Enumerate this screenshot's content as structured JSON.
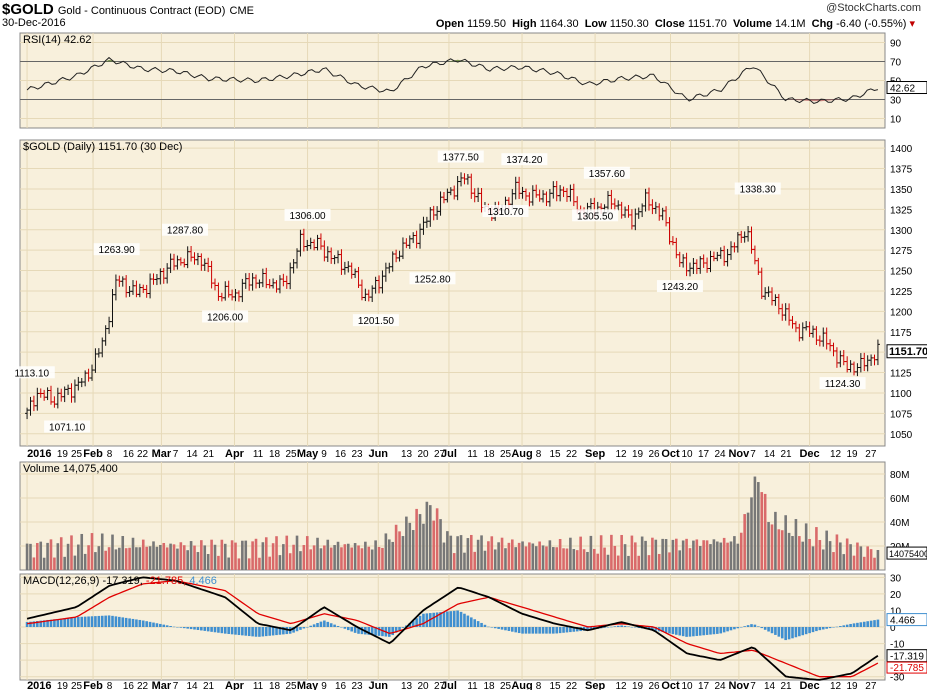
{
  "header": {
    "symbol": "$GOLD",
    "description": "Gold - Continuous Contract (EOD)",
    "exchange": "CME",
    "date": "30-Dec-2016",
    "credit": "@StockCharts.com",
    "open_label": "Open",
    "open": "1159.50",
    "high_label": "High",
    "high": "1164.30",
    "low_label": "Low",
    "low": "1150.30",
    "close_label": "Close",
    "close": "1151.70",
    "volume_label": "Volume",
    "volume": "14.1M",
    "chg_label": "Chg",
    "chg": "-6.40 (-0.55%)"
  },
  "colors": {
    "panel_bg": "#f8f0dc",
    "up": "#111111",
    "down": "#cc0000",
    "vol_up": "#777777",
    "vol_down": "#d96a6a",
    "rsi_fill": "#5a7a2a",
    "macd_line": "#000000",
    "signal_line": "#e00000",
    "hist": "#3f8fd0",
    "grid": "#e6d9b8"
  },
  "chart_data": [
    {
      "type": "line",
      "title": "RSI(14) 42.62",
      "label_prefix": "RSI(14)",
      "last": "42.62",
      "ylim": [
        0,
        100
      ],
      "yticks": [
        "90",
        "70",
        "50",
        "30",
        "10"
      ],
      "reference_lines": [
        70,
        30
      ],
      "x": [
        "2016-01-04",
        "2016-01-25",
        "2016-02-08",
        "2016-02-22",
        "2016-03-07",
        "2016-03-21",
        "2016-04-11",
        "2016-04-25",
        "2016-05-09",
        "2016-05-23",
        "2016-06-06",
        "2016-06-20",
        "2016-07-05",
        "2016-07-18",
        "2016-08-01",
        "2016-08-15",
        "2016-08-29",
        "2016-09-12",
        "2016-09-26",
        "2016-10-10",
        "2016-10-24",
        "2016-11-07",
        "2016-11-21",
        "2016-12-05",
        "2016-12-19",
        "2016-12-30"
      ],
      "values": [
        40,
        55,
        72,
        62,
        60,
        52,
        50,
        55,
        62,
        45,
        38,
        65,
        72,
        62,
        64,
        58,
        46,
        52,
        55,
        30,
        40,
        66,
        30,
        28,
        31,
        42.62
      ]
    },
    {
      "type": "candlestick",
      "title": "$GOLD (Daily) 1151.70 (30 Dec)",
      "last": "1151.70",
      "ylim": [
        1035,
        1410
      ],
      "yticks": [
        "1400",
        "1375",
        "1350",
        "1325",
        "1300",
        "1275",
        "1250",
        "1225",
        "1200",
        "1175",
        "1150",
        "1125",
        "1100",
        "1075",
        "1050"
      ],
      "x": [
        "2016-01-04",
        "2016-01-08",
        "2016-01-15",
        "2016-01-22",
        "2016-01-29",
        "2016-02-05",
        "2016-02-11",
        "2016-02-19",
        "2016-02-26",
        "2016-03-04",
        "2016-03-11",
        "2016-03-18",
        "2016-03-25",
        "2016-04-01",
        "2016-04-08",
        "2016-04-15",
        "2016-04-22",
        "2016-04-29",
        "2016-05-06",
        "2016-05-13",
        "2016-05-20",
        "2016-05-27",
        "2016-06-03",
        "2016-06-10",
        "2016-06-17",
        "2016-06-24",
        "2016-07-01",
        "2016-07-08",
        "2016-07-15",
        "2016-07-22",
        "2016-07-29",
        "2016-08-05",
        "2016-08-12",
        "2016-08-19",
        "2016-08-26",
        "2016-09-02",
        "2016-09-09",
        "2016-09-16",
        "2016-09-23",
        "2016-09-30",
        "2016-10-07",
        "2016-10-14",
        "2016-10-21",
        "2016-10-28",
        "2016-11-04",
        "2016-11-11",
        "2016-11-18",
        "2016-11-25",
        "2016-12-02",
        "2016-12-09",
        "2016-12-16",
        "2016-12-23",
        "2016-12-30"
      ],
      "values": [
        1075,
        1100,
        1092,
        1103,
        1118,
        1160,
        1240,
        1222,
        1235,
        1255,
        1265,
        1265,
        1222,
        1220,
        1240,
        1235,
        1232,
        1285,
        1282,
        1265,
        1252,
        1215,
        1245,
        1275,
        1292,
        1322,
        1345,
        1365,
        1328,
        1320,
        1350,
        1340,
        1342,
        1350,
        1322,
        1327,
        1335,
        1310,
        1338,
        1315,
        1258,
        1255,
        1265,
        1272,
        1302,
        1225,
        1208,
        1178,
        1175,
        1160,
        1132,
        1133,
        1151.7
      ],
      "annotations": [
        {
          "x": "2016-01-06",
          "label": "1113.10",
          "value": 1113.1
        },
        {
          "x": "2016-01-21",
          "label": "1071.10",
          "value": 1071.1
        },
        {
          "x": "2016-02-11",
          "label": "1263.90",
          "value": 1263.9
        },
        {
          "x": "2016-03-11",
          "label": "1287.80",
          "value": 1287.8
        },
        {
          "x": "2016-03-28",
          "label": "1206.00",
          "value": 1206.0
        },
        {
          "x": "2016-05-02",
          "label": "1306.00",
          "value": 1306.0
        },
        {
          "x": "2016-05-31",
          "label": "1201.50",
          "value": 1201.5
        },
        {
          "x": "2016-06-24",
          "label": "1252.80",
          "value": 1252.8
        },
        {
          "x": "2016-07-06",
          "label": "1377.50",
          "value": 1377.5
        },
        {
          "x": "2016-07-25",
          "label": "1310.70",
          "value": 1310.7
        },
        {
          "x": "2016-08-02",
          "label": "1374.20",
          "value": 1374.2
        },
        {
          "x": "2016-09-06",
          "label": "1357.60",
          "value": 1357.6
        },
        {
          "x": "2016-09-01",
          "label": "1305.50",
          "value": 1305.5
        },
        {
          "x": "2016-10-07",
          "label": "1243.20",
          "value": 1243.2
        },
        {
          "x": "2016-11-09",
          "label": "1338.30",
          "value": 1338.3
        },
        {
          "x": "2016-12-15",
          "label": "1124.30",
          "value": 1124.3
        }
      ]
    },
    {
      "type": "bar",
      "title": "Volume 14,075,400",
      "label_prefix": "Volume",
      "last": "14,075,400",
      "last_tag": "14075400",
      "ylim": [
        0,
        90
      ],
      "unit": "M",
      "yticks": [
        "80M",
        "60M",
        "40M",
        "20M"
      ],
      "x": [
        "2016-01-04",
        "2016-02-01",
        "2016-03-01",
        "2016-04-01",
        "2016-05-02",
        "2016-06-01",
        "2016-06-24",
        "2016-07-01",
        "2016-08-01",
        "2016-09-01",
        "2016-10-03",
        "2016-11-01",
        "2016-11-09",
        "2016-11-14",
        "2016-12-01",
        "2016-12-30"
      ],
      "values": [
        18,
        22,
        21,
        19,
        22,
        20,
        53,
        24,
        22,
        20,
        22,
        25,
        80,
        42,
        28,
        14.1
      ]
    },
    {
      "type": "line",
      "title": "MACD(12,26,9) -17.319, -21.785, 4.466",
      "label_prefix": "MACD(12,26,9)",
      "macd": "-17.319",
      "signal": "-21.785",
      "hist": "4.466",
      "ylim": [
        -32,
        32
      ],
      "yticks": [
        "30",
        "20",
        "10",
        "0",
        "-10",
        "-20",
        "-30"
      ],
      "x": [
        "2016-01-04",
        "2016-01-25",
        "2016-02-08",
        "2016-02-22",
        "2016-03-07",
        "2016-03-28",
        "2016-04-11",
        "2016-04-25",
        "2016-05-09",
        "2016-05-23",
        "2016-06-06",
        "2016-06-20",
        "2016-07-05",
        "2016-07-18",
        "2016-08-01",
        "2016-08-15",
        "2016-08-29",
        "2016-09-12",
        "2016-09-26",
        "2016-10-10",
        "2016-10-24",
        "2016-11-07",
        "2016-11-21",
        "2016-12-05",
        "2016-12-19",
        "2016-12-30"
      ],
      "series": [
        {
          "name": "MACD",
          "values": [
            5,
            12,
            25,
            30,
            28,
            18,
            2,
            -2,
            12,
            0,
            -10,
            10,
            24,
            18,
            8,
            2,
            -2,
            3,
            -2,
            -16,
            -20,
            -12,
            -30,
            -32,
            -28,
            -17.319
          ]
        },
        {
          "name": "Signal",
          "values": [
            2,
            6,
            18,
            26,
            28,
            22,
            8,
            2,
            8,
            4,
            -4,
            2,
            14,
            18,
            12,
            6,
            0,
            2,
            0,
            -10,
            -16,
            -14,
            -22,
            -30,
            -30,
            -21.785
          ]
        }
      ]
    }
  ],
  "x_axis": {
    "labels": [
      "2016",
      "19",
      "25",
      "Feb",
      "8",
      "16",
      "22",
      "Mar",
      "7",
      "14",
      "21",
      "Apr",
      "11",
      "18",
      "25",
      "May",
      "9",
      "16",
      "23",
      "Jun",
      "13",
      "20",
      "27",
      "Jul",
      "11",
      "18",
      "25",
      "Aug",
      "8",
      "15",
      "22",
      "Sep",
      "12",
      "19",
      "26",
      "Oct",
      "10",
      "17",
      "24",
      "Nov",
      "7",
      "14",
      "21",
      "Dec",
      "12",
      "19",
      "27"
    ],
    "positions": [
      "2016-01-04",
      "2016-01-19",
      "2016-01-25",
      "2016-02-01",
      "2016-02-08",
      "2016-02-16",
      "2016-02-22",
      "2016-03-01",
      "2016-03-07",
      "2016-03-14",
      "2016-03-21",
      "2016-04-01",
      "2016-04-11",
      "2016-04-18",
      "2016-04-25",
      "2016-05-02",
      "2016-05-09",
      "2016-05-16",
      "2016-05-23",
      "2016-06-01",
      "2016-06-13",
      "2016-06-20",
      "2016-06-27",
      "2016-07-01",
      "2016-07-11",
      "2016-07-18",
      "2016-07-25",
      "2016-08-01",
      "2016-08-08",
      "2016-08-15",
      "2016-08-22",
      "2016-09-01",
      "2016-09-12",
      "2016-09-19",
      "2016-09-26",
      "2016-10-03",
      "2016-10-10",
      "2016-10-17",
      "2016-10-24",
      "2016-11-01",
      "2016-11-07",
      "2016-11-14",
      "2016-11-21",
      "2016-12-01",
      "2016-12-12",
      "2016-12-19",
      "2016-12-27"
    ],
    "bold": [
      "2016",
      "Feb",
      "Mar",
      "Apr",
      "May",
      "Jun",
      "Jul",
      "Aug",
      "Sep",
      "Oct",
      "Nov",
      "Dec"
    ]
  }
}
